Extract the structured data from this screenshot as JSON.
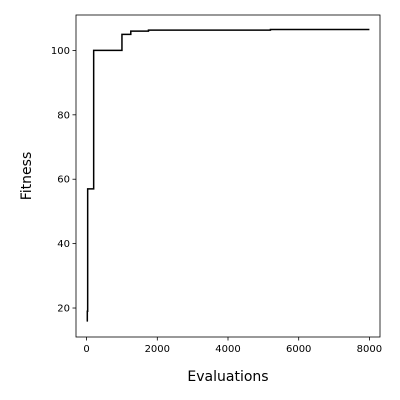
{
  "chart_data": {
    "type": "line",
    "title": "",
    "xlabel": "Evaluations",
    "ylabel": "Fitness",
    "xlim": [
      -300,
      8300
    ],
    "ylim": [
      11,
      111
    ],
    "xticks": [
      0,
      2000,
      4000,
      6000,
      8000
    ],
    "yticks": [
      20,
      40,
      60,
      80,
      100
    ],
    "xtick_labels": [
      "0",
      "2000",
      "4000",
      "6000",
      "8000"
    ],
    "ytick_labels": [
      "20",
      "40",
      "60",
      "80",
      "100"
    ],
    "grid": false,
    "step": "post",
    "line_color": "#000000",
    "series": [
      {
        "x": [
          0,
          20,
          30,
          200,
          1000,
          1100,
          1250,
          1750,
          5200,
          8000
        ],
        "y": [
          16,
          19,
          57,
          100,
          105,
          105,
          106,
          106.3,
          106.5,
          106.5
        ]
      }
    ]
  }
}
